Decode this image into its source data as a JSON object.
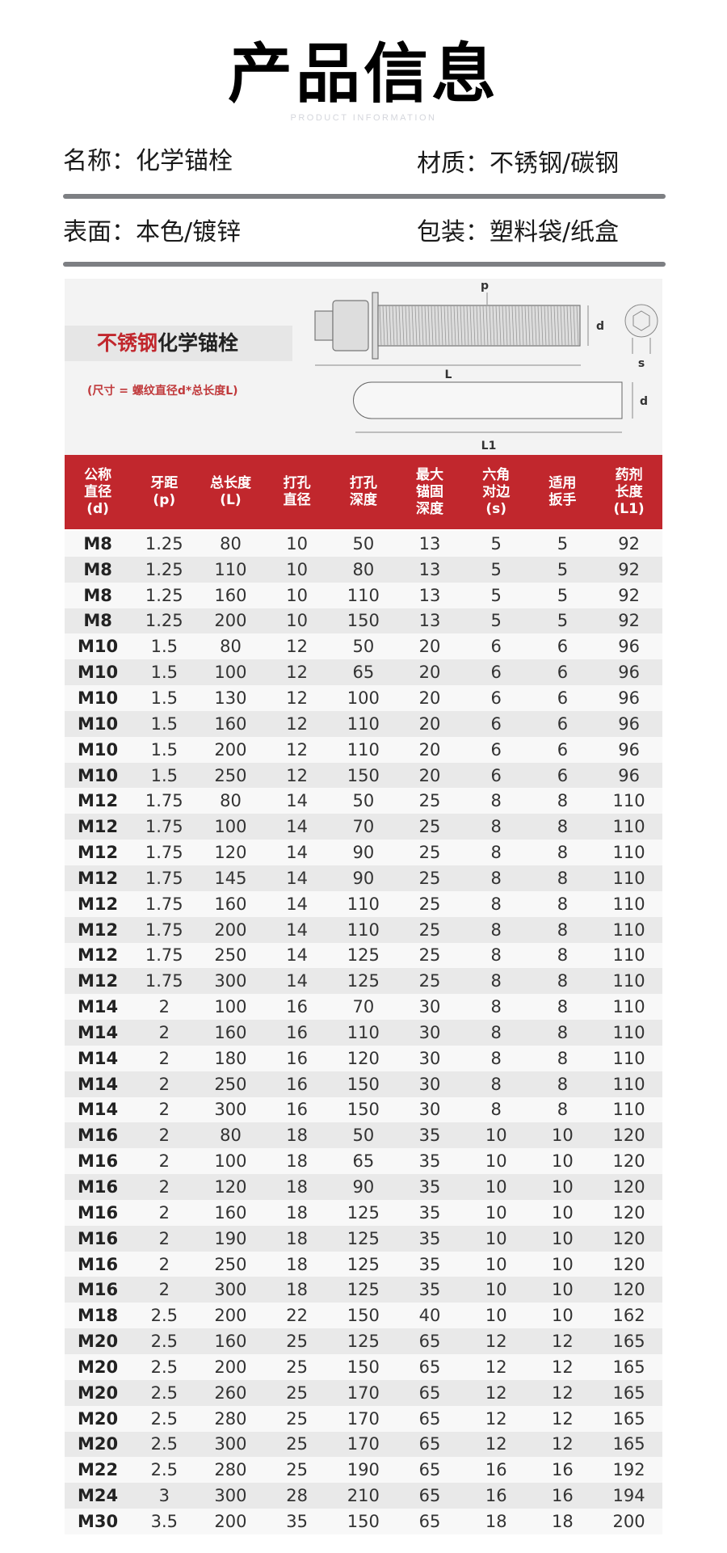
{
  "header": {
    "title": "产品信息",
    "subtitle": "PRODUCT INFORMATION"
  },
  "info": {
    "name": "名称：化学锚栓",
    "material": "材质：不锈钢/碳钢",
    "surface": "表面：本色/镀锌",
    "packaging": "包装：塑料袋/纸盒"
  },
  "diagram": {
    "brand_red": "不锈钢",
    "brand_black": "化学锚栓",
    "note": "(尺寸 = 螺纹直径d*总长度L)",
    "labels": {
      "p": "p",
      "d": "d",
      "L": "L",
      "s": "s",
      "L1": "L1"
    },
    "accent_color": "#c1272d"
  },
  "table": {
    "headers": [
      "公称\n直径\n(d)",
      "牙距\n(p)",
      "总长度\n(L)",
      "打孔\n直径",
      "打孔\n深度",
      "最大\n锚固\n深度",
      "六角\n对边\n(s)",
      "适用\n扳手",
      "药剂\n长度\n(L1)"
    ],
    "rows": [
      [
        "M8",
        "1.25",
        "80",
        "10",
        "50",
        "13",
        "5",
        "5",
        "92"
      ],
      [
        "M8",
        "1.25",
        "110",
        "10",
        "80",
        "13",
        "5",
        "5",
        "92"
      ],
      [
        "M8",
        "1.25",
        "160",
        "10",
        "110",
        "13",
        "5",
        "5",
        "92"
      ],
      [
        "M8",
        "1.25",
        "200",
        "10",
        "150",
        "13",
        "5",
        "5",
        "92"
      ],
      [
        "M10",
        "1.5",
        "80",
        "12",
        "50",
        "20",
        "6",
        "6",
        "96"
      ],
      [
        "M10",
        "1.5",
        "100",
        "12",
        "65",
        "20",
        "6",
        "6",
        "96"
      ],
      [
        "M10",
        "1.5",
        "130",
        "12",
        "100",
        "20",
        "6",
        "6",
        "96"
      ],
      [
        "M10",
        "1.5",
        "160",
        "12",
        "110",
        "20",
        "6",
        "6",
        "96"
      ],
      [
        "M10",
        "1.5",
        "200",
        "12",
        "110",
        "20",
        "6",
        "6",
        "96"
      ],
      [
        "M10",
        "1.5",
        "250",
        "12",
        "150",
        "20",
        "6",
        "6",
        "96"
      ],
      [
        "M12",
        "1.75",
        "80",
        "14",
        "50",
        "25",
        "8",
        "8",
        "110"
      ],
      [
        "M12",
        "1.75",
        "100",
        "14",
        "70",
        "25",
        "8",
        "8",
        "110"
      ],
      [
        "M12",
        "1.75",
        "120",
        "14",
        "90",
        "25",
        "8",
        "8",
        "110"
      ],
      [
        "M12",
        "1.75",
        "145",
        "14",
        "90",
        "25",
        "8",
        "8",
        "110"
      ],
      [
        "M12",
        "1.75",
        "160",
        "14",
        "110",
        "25",
        "8",
        "8",
        "110"
      ],
      [
        "M12",
        "1.75",
        "200",
        "14",
        "110",
        "25",
        "8",
        "8",
        "110"
      ],
      [
        "M12",
        "1.75",
        "250",
        "14",
        "125",
        "25",
        "8",
        "8",
        "110"
      ],
      [
        "M12",
        "1.75",
        "300",
        "14",
        "125",
        "25",
        "8",
        "8",
        "110"
      ],
      [
        "M14",
        "2",
        "100",
        "16",
        "70",
        "30",
        "8",
        "8",
        "110"
      ],
      [
        "M14",
        "2",
        "160",
        "16",
        "110",
        "30",
        "8",
        "8",
        "110"
      ],
      [
        "M14",
        "2",
        "180",
        "16",
        "120",
        "30",
        "8",
        "8",
        "110"
      ],
      [
        "M14",
        "2",
        "250",
        "16",
        "150",
        "30",
        "8",
        "8",
        "110"
      ],
      [
        "M14",
        "2",
        "300",
        "16",
        "150",
        "30",
        "8",
        "8",
        "110"
      ],
      [
        "M16",
        "2",
        "80",
        "18",
        "50",
        "35",
        "10",
        "10",
        "120"
      ],
      [
        "M16",
        "2",
        "100",
        "18",
        "65",
        "35",
        "10",
        "10",
        "120"
      ],
      [
        "M16",
        "2",
        "120",
        "18",
        "90",
        "35",
        "10",
        "10",
        "120"
      ],
      [
        "M16",
        "2",
        "160",
        "18",
        "125",
        "35",
        "10",
        "10",
        "120"
      ],
      [
        "M16",
        "2",
        "190",
        "18",
        "125",
        "35",
        "10",
        "10",
        "120"
      ],
      [
        "M16",
        "2",
        "250",
        "18",
        "125",
        "35",
        "10",
        "10",
        "120"
      ],
      [
        "M16",
        "2",
        "300",
        "18",
        "125",
        "35",
        "10",
        "10",
        "120"
      ],
      [
        "M18",
        "2.5",
        "200",
        "22",
        "150",
        "40",
        "10",
        "10",
        "162"
      ],
      [
        "M20",
        "2.5",
        "160",
        "25",
        "125",
        "65",
        "12",
        "12",
        "165"
      ],
      [
        "M20",
        "2.5",
        "200",
        "25",
        "150",
        "65",
        "12",
        "12",
        "165"
      ],
      [
        "M20",
        "2.5",
        "260",
        "25",
        "170",
        "65",
        "12",
        "12",
        "165"
      ],
      [
        "M20",
        "2.5",
        "280",
        "25",
        "170",
        "65",
        "12",
        "12",
        "165"
      ],
      [
        "M20",
        "2.5",
        "300",
        "25",
        "170",
        "65",
        "12",
        "12",
        "165"
      ],
      [
        "M22",
        "2.5",
        "280",
        "25",
        "190",
        "65",
        "16",
        "16",
        "192"
      ],
      [
        "M24",
        "3",
        "300",
        "28",
        "210",
        "65",
        "16",
        "16",
        "194"
      ],
      [
        "M30",
        "3.5",
        "200",
        "35",
        "150",
        "65",
        "18",
        "18",
        "200"
      ]
    ]
  }
}
